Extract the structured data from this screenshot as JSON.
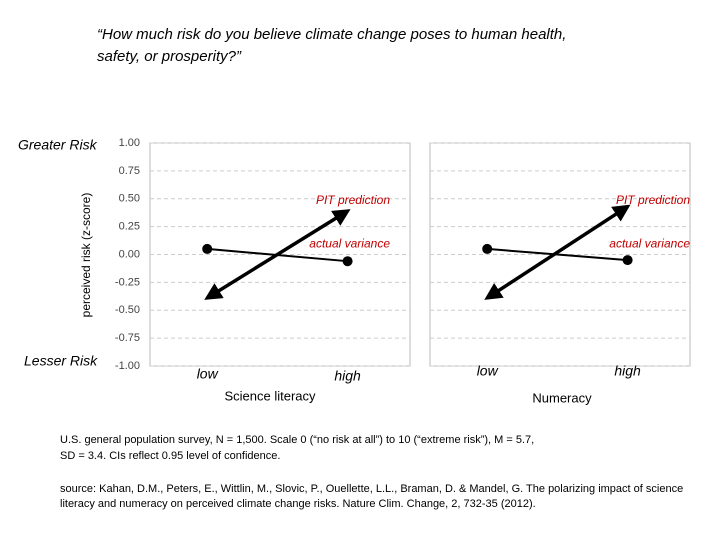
{
  "title_lines": [
    "“How much risk do you believe climate change poses to human health,",
    "safety, or prosperity?”"
  ],
  "y_axis_label": "perceived risk (z-score)",
  "y_top_label": "Greater Risk",
  "y_bottom_label": "Lesser Risk",
  "notes": [
    "U.S. general population survey, N = 1,500. Scale 0 (“no risk at all”) to 10 (“extreme risk”), M = 5.7,",
    "SD = 3.4. CIs reflect 0.95 level of confidence.",
    "source: Kahan, D.M., Peters, E., Wittlin, M., Slovic, P., Ouellette, L.L., Braman, D. & Mandel, G. The polarizing impact of science",
    "literacy and numeracy on perceived climate change risks. Nature Clim. Change, 2, 732-35 (2012)."
  ],
  "chart_data": [
    {
      "type": "line",
      "xlabel": "Science literacy",
      "categories": [
        "low",
        "high"
      ],
      "ylim": [
        -1,
        1
      ],
      "yticks": [
        {
          "value": -1,
          "label": "-1.00"
        },
        {
          "value": -0.75,
          "label": "-0.75"
        },
        {
          "value": -0.5,
          "label": "-0.50"
        },
        {
          "value": -0.25,
          "label": "-0.25"
        },
        {
          "value": 0,
          "label": "0.00"
        },
        {
          "value": 0.25,
          "label": "0.25"
        },
        {
          "value": 0.5,
          "label": "0.50"
        },
        {
          "value": 0.75,
          "label": "0.75"
        },
        {
          "value": 1,
          "label": "1.00"
        }
      ],
      "series": [
        {
          "name": "PIT prediction",
          "color": "#000000",
          "values": [
            -0.39,
            0.39
          ]
        },
        {
          "name": "actual variance",
          "color": "#000000",
          "values": [
            0.05,
            -0.06
          ],
          "errors": [
            0.03,
            0.03
          ]
        }
      ]
    },
    {
      "type": "line",
      "xlabel": "Numeracy",
      "categories": [
        "low",
        "high"
      ],
      "ylim": [
        -1,
        1
      ],
      "yticks": [
        -1,
        -0.75,
        -0.5,
        -0.25,
        0,
        0.25,
        0.5,
        0.75,
        1
      ],
      "series": [
        {
          "name": "PIT prediction",
          "color": "#000000",
          "values": [
            -0.39,
            0.43
          ]
        },
        {
          "name": "actual variance",
          "color": "#000000",
          "values": [
            0.05,
            -0.05
          ],
          "errors": [
            0.03,
            0.03
          ]
        }
      ]
    }
  ]
}
